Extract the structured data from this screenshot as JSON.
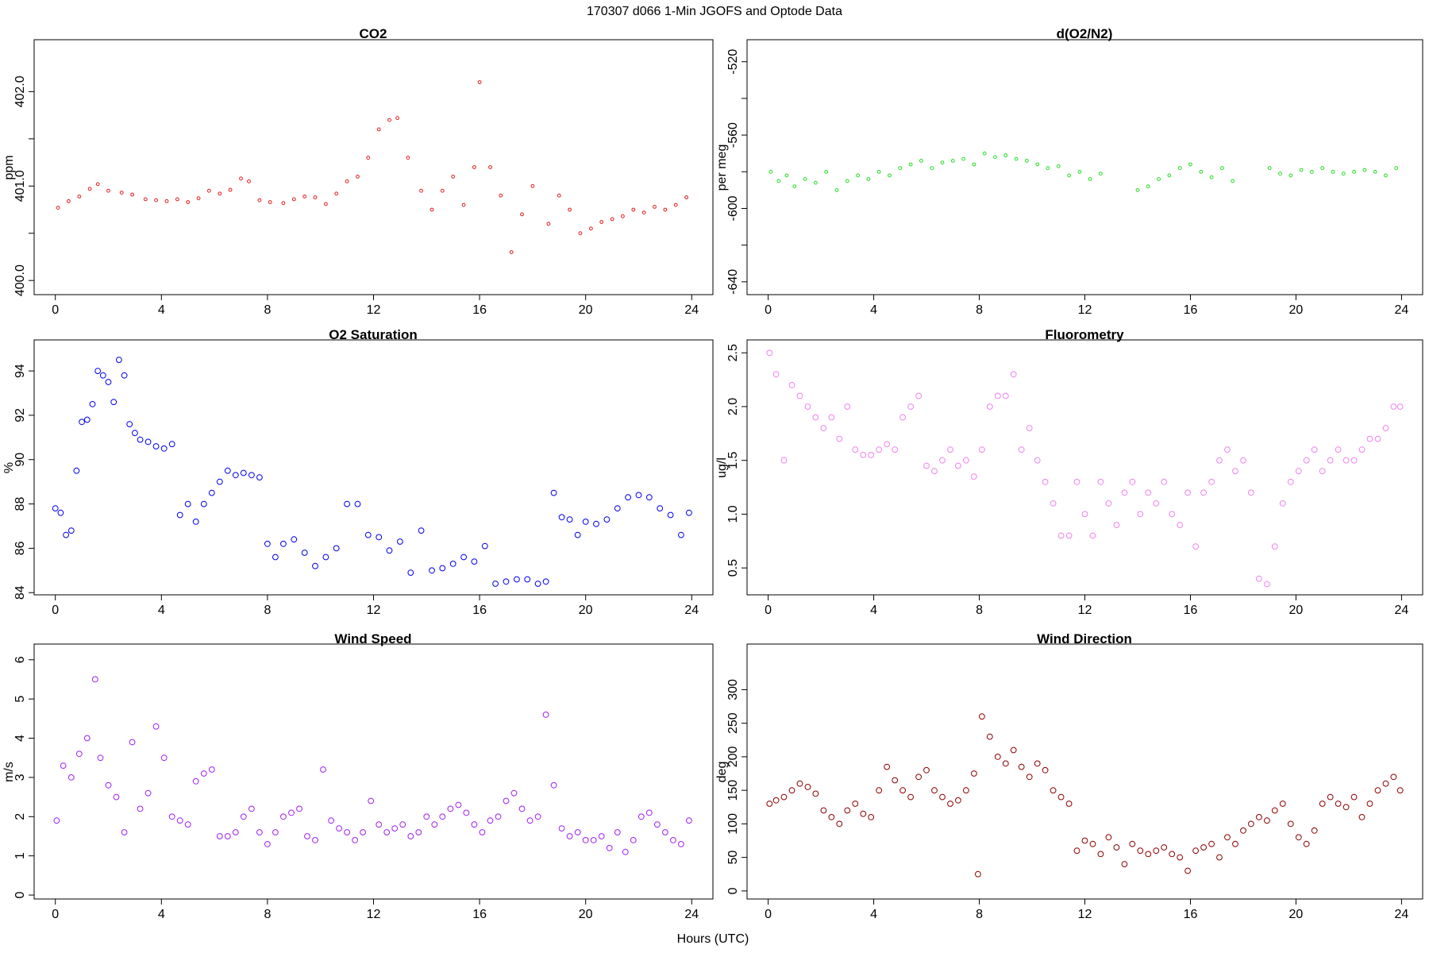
{
  "suptitle": "170307   d066   1-Min  JGOFS and Optode Data",
  "xlabel_common": "Hours (UTC)",
  "chart_data": [
    {
      "type": "scatter",
      "title": "CO2",
      "ylabel": "ppm",
      "color": "#e41a1c",
      "marker": "small-circle",
      "xlim": [
        -0.8,
        24.8
      ],
      "ylim": [
        399.85,
        402.55
      ],
      "xticks": [
        0,
        4,
        8,
        12,
        16,
        20,
        24
      ],
      "yticks": [
        400.0,
        400.5,
        401.0,
        401.5,
        402.0
      ],
      "ytick_labels": [
        "400.0",
        "",
        "401.0",
        "",
        "402.0"
      ],
      "series": [
        {
          "name": "CO2",
          "x": [
            0.1,
            0.5,
            0.9,
            1.3,
            1.6,
            2.0,
            2.5,
            2.9,
            3.4,
            3.8,
            4.2,
            4.6,
            5.0,
            5.4,
            5.8,
            6.2,
            6.6,
            7.0,
            7.3,
            7.7,
            8.1,
            8.6,
            9.0,
            9.4,
            9.8,
            10.2,
            10.6,
            11.0,
            11.4,
            11.8,
            12.2,
            12.6,
            12.9,
            13.3,
            13.8,
            14.2,
            14.6,
            15.0,
            15.4,
            15.8,
            16.0,
            16.4,
            16.8,
            17.2,
            17.6,
            18.0,
            18.6,
            19.0,
            19.4,
            19.8,
            20.2,
            20.6,
            21.0,
            21.4,
            21.8,
            22.2,
            22.6,
            23.0,
            23.4,
            23.8
          ],
          "y": [
            400.77,
            400.84,
            400.89,
            400.97,
            401.02,
            400.95,
            400.93,
            400.91,
            400.86,
            400.85,
            400.84,
            400.86,
            400.83,
            400.87,
            400.95,
            400.92,
            400.96,
            401.08,
            401.05,
            400.85,
            400.83,
            400.82,
            400.86,
            400.89,
            400.88,
            400.81,
            400.92,
            401.05,
            401.1,
            401.3,
            401.6,
            401.7,
            401.72,
            401.3,
            400.95,
            400.75,
            400.95,
            401.1,
            400.8,
            401.2,
            402.1,
            401.2,
            400.9,
            400.3,
            400.7,
            401.0,
            400.6,
            400.9,
            400.75,
            400.5,
            400.55,
            400.62,
            400.65,
            400.68,
            400.75,
            400.72,
            400.78,
            400.75,
            400.8,
            400.88
          ]
        }
      ]
    },
    {
      "type": "scatter",
      "title": "d(O2/N2)",
      "ylabel": "per meg",
      "color": "#22dd22",
      "marker": "small-circle",
      "xlim": [
        -0.8,
        24.8
      ],
      "ylim": [
        -647,
        -508
      ],
      "xticks": [
        0,
        4,
        8,
        12,
        16,
        20,
        24
      ],
      "yticks": [
        -640,
        -620,
        -600,
        -580,
        -560,
        -540,
        -520
      ],
      "ytick_labels": [
        "-640",
        "",
        "-600",
        "",
        "-560",
        "",
        "-520"
      ],
      "series": [
        {
          "name": "d(O2/N2)",
          "x": [
            0.1,
            0.4,
            0.7,
            1.0,
            1.4,
            1.8,
            2.2,
            2.6,
            3.0,
            3.4,
            3.8,
            4.2,
            4.6,
            5.0,
            5.4,
            5.8,
            6.2,
            6.6,
            7.0,
            7.4,
            7.8,
            8.2,
            8.6,
            9.0,
            9.4,
            9.8,
            10.2,
            10.6,
            11.0,
            11.4,
            11.8,
            12.2,
            12.6,
            14.0,
            14.4,
            14.8,
            15.2,
            15.6,
            16.0,
            16.4,
            16.8,
            17.2,
            17.6,
            19.0,
            19.4,
            19.8,
            20.2,
            20.6,
            21.0,
            21.4,
            21.8,
            22.2,
            22.6,
            23.0,
            23.4,
            23.8
          ],
          "y": [
            -580,
            -585,
            -582,
            -588,
            -584,
            -586,
            -580,
            -590,
            -585,
            -582,
            -584,
            -580,
            -582,
            -578,
            -576,
            -574,
            -578,
            -575,
            -574,
            -573,
            -576,
            -570,
            -572,
            -571,
            -573,
            -574,
            -576,
            -578,
            -577,
            -582,
            -580,
            -584,
            -581,
            -590,
            -588,
            -584,
            -582,
            -578,
            -576,
            -580,
            -583,
            -578,
            -585,
            -578,
            -581,
            -582,
            -579,
            -580,
            -578,
            -580,
            -581,
            -580,
            -579,
            -580,
            -582,
            -578
          ]
        }
      ]
    },
    {
      "type": "scatter",
      "title": "O2 Saturation",
      "ylabel": "%",
      "color": "#0000ee",
      "marker": "circle",
      "xlim": [
        -0.8,
        24.8
      ],
      "ylim": [
        83.9,
        95.4
      ],
      "xticks": [
        0,
        4,
        8,
        12,
        16,
        20,
        24
      ],
      "yticks": [
        84,
        86,
        88,
        90,
        92,
        94
      ],
      "ytick_labels": [
        "84",
        "86",
        "88",
        "90",
        "92",
        "94"
      ],
      "series": [
        {
          "name": "O2 Saturation",
          "x": [
            0.0,
            0.2,
            0.4,
            0.6,
            0.8,
            1.0,
            1.2,
            1.4,
            1.6,
            1.8,
            2.0,
            2.2,
            2.4,
            2.6,
            2.8,
            3.0,
            3.2,
            3.5,
            3.8,
            4.1,
            4.4,
            4.7,
            5.0,
            5.3,
            5.6,
            5.9,
            6.2,
            6.5,
            6.8,
            7.1,
            7.4,
            7.7,
            8.0,
            8.3,
            8.6,
            9.0,
            9.4,
            9.8,
            10.2,
            10.6,
            11.0,
            11.4,
            11.8,
            12.2,
            12.6,
            13.0,
            13.4,
            13.8,
            14.2,
            14.6,
            15.0,
            15.4,
            15.8,
            16.2,
            16.6,
            17.0,
            17.4,
            17.8,
            18.2,
            18.5,
            18.8,
            19.1,
            19.4,
            19.7,
            20.0,
            20.4,
            20.8,
            21.2,
            21.6,
            22.0,
            22.4,
            22.8,
            23.2,
            23.6,
            23.9
          ],
          "y": [
            87.8,
            87.6,
            86.6,
            86.8,
            89.5,
            91.7,
            91.8,
            92.5,
            94.0,
            93.8,
            93.5,
            92.6,
            94.5,
            93.8,
            91.6,
            91.2,
            90.9,
            90.8,
            90.6,
            90.5,
            90.7,
            87.5,
            88.0,
            87.2,
            88.0,
            88.5,
            89.0,
            89.5,
            89.3,
            89.4,
            89.3,
            89.2,
            86.2,
            85.6,
            86.2,
            86.4,
            85.8,
            85.2,
            85.6,
            86.0,
            88.0,
            88.0,
            86.6,
            86.5,
            85.9,
            86.3,
            84.9,
            86.8,
            85.0,
            85.1,
            85.3,
            85.6,
            85.4,
            86.1,
            84.4,
            84.5,
            84.6,
            84.6,
            84.4,
            84.5,
            88.5,
            87.4,
            87.3,
            86.6,
            87.2,
            87.1,
            87.3,
            87.8,
            88.3,
            88.4,
            88.3,
            87.8,
            87.5,
            86.6,
            87.6
          ]
        }
      ]
    },
    {
      "type": "scatter",
      "title": "Fluorometry",
      "ylabel": "ug/l",
      "color": "#ee82ee",
      "marker": "circle",
      "xlim": [
        -0.8,
        24.8
      ],
      "ylim": [
        0.25,
        2.62
      ],
      "xticks": [
        0,
        4,
        8,
        12,
        16,
        20,
        24
      ],
      "yticks": [
        0.5,
        1.0,
        1.5,
        2.0,
        2.5
      ],
      "ytick_labels": [
        "0.5",
        "1.0",
        "1.5",
        "2.0",
        "2.5"
      ],
      "series": [
        {
          "name": "Fluorometry",
          "x": [
            0.05,
            0.3,
            0.6,
            0.9,
            1.2,
            1.5,
            1.8,
            2.1,
            2.4,
            2.7,
            3.0,
            3.3,
            3.6,
            3.9,
            4.2,
            4.5,
            4.8,
            5.1,
            5.4,
            5.7,
            6.0,
            6.3,
            6.6,
            6.9,
            7.2,
            7.5,
            7.8,
            8.1,
            8.4,
            8.7,
            9.0,
            9.3,
            9.6,
            9.9,
            10.2,
            10.5,
            10.8,
            11.1,
            11.4,
            11.7,
            12.0,
            12.3,
            12.6,
            12.9,
            13.2,
            13.5,
            13.8,
            14.1,
            14.4,
            14.7,
            15.0,
            15.3,
            15.6,
            15.9,
            16.2,
            16.5,
            16.8,
            17.1,
            17.4,
            17.7,
            18.0,
            18.3,
            18.6,
            18.9,
            19.2,
            19.5,
            19.8,
            20.1,
            20.4,
            20.7,
            21.0,
            21.3,
            21.6,
            21.9,
            22.2,
            22.5,
            22.8,
            23.1,
            23.4,
            23.7,
            23.95
          ],
          "y": [
            2.5,
            2.3,
            1.5,
            2.2,
            2.1,
            2.0,
            1.9,
            1.8,
            1.9,
            1.7,
            2.0,
            1.6,
            1.55,
            1.55,
            1.6,
            1.65,
            1.6,
            1.9,
            2.0,
            2.1,
            1.45,
            1.4,
            1.5,
            1.6,
            1.45,
            1.5,
            1.35,
            1.6,
            2.0,
            2.1,
            2.1,
            2.3,
            1.6,
            1.8,
            1.5,
            1.3,
            1.1,
            0.8,
            0.8,
            1.3,
            1.0,
            0.8,
            1.3,
            1.1,
            0.9,
            1.2,
            1.3,
            1.0,
            1.2,
            1.1,
            1.3,
            1.0,
            0.9,
            1.2,
            0.7,
            1.2,
            1.3,
            1.5,
            1.6,
            1.4,
            1.5,
            1.2,
            0.4,
            0.35,
            0.7,
            1.1,
            1.3,
            1.4,
            1.5,
            1.6,
            1.4,
            1.5,
            1.6,
            1.5,
            1.5,
            1.6,
            1.7,
            1.7,
            1.8,
            2.0,
            2.0
          ]
        }
      ]
    },
    {
      "type": "scatter",
      "title": "Wind Speed",
      "ylabel": "m/s",
      "color": "#a020f0",
      "marker": "circle",
      "xlim": [
        -0.8,
        24.8
      ],
      "ylim": [
        -0.1,
        6.4
      ],
      "xticks": [
        0,
        4,
        8,
        12,
        16,
        20,
        24
      ],
      "yticks": [
        0,
        1,
        2,
        3,
        4,
        5,
        6
      ],
      "ytick_labels": [
        "0",
        "1",
        "2",
        "3",
        "4",
        "5",
        "6"
      ],
      "series": [
        {
          "name": "Wind Speed",
          "x": [
            0.05,
            0.3,
            0.6,
            0.9,
            1.2,
            1.5,
            1.7,
            2.0,
            2.3,
            2.6,
            2.9,
            3.2,
            3.5,
            3.8,
            4.1,
            4.4,
            4.7,
            5.0,
            5.3,
            5.6,
            5.9,
            6.2,
            6.5,
            6.8,
            7.1,
            7.4,
            7.7,
            8.0,
            8.3,
            8.6,
            8.9,
            9.2,
            9.5,
            9.8,
            10.1,
            10.4,
            10.7,
            11.0,
            11.3,
            11.6,
            11.9,
            12.2,
            12.5,
            12.8,
            13.1,
            13.4,
            13.7,
            14.0,
            14.3,
            14.6,
            14.9,
            15.2,
            15.5,
            15.8,
            16.1,
            16.4,
            16.7,
            17.0,
            17.3,
            17.6,
            17.9,
            18.2,
            18.5,
            18.8,
            19.1,
            19.4,
            19.7,
            20.0,
            20.3,
            20.6,
            20.9,
            21.2,
            21.5,
            21.8,
            22.1,
            22.4,
            22.7,
            23.0,
            23.3,
            23.6,
            23.9
          ],
          "y": [
            1.9,
            3.3,
            3.0,
            3.6,
            4.0,
            5.5,
            3.5,
            2.8,
            2.5,
            1.6,
            3.9,
            2.2,
            2.6,
            4.3,
            3.5,
            2.0,
            1.9,
            1.8,
            2.9,
            3.1,
            3.2,
            1.5,
            1.5,
            1.6,
            2.0,
            2.2,
            1.6,
            1.3,
            1.6,
            2.0,
            2.1,
            2.2,
            1.5,
            1.4,
            3.2,
            1.9,
            1.7,
            1.6,
            1.4,
            1.6,
            2.4,
            1.8,
            1.6,
            1.7,
            1.8,
            1.5,
            1.6,
            2.0,
            1.8,
            2.0,
            2.2,
            2.3,
            2.1,
            1.8,
            1.6,
            1.9,
            2.0,
            2.4,
            2.6,
            2.2,
            1.9,
            2.0,
            4.6,
            2.8,
            1.7,
            1.5,
            1.6,
            1.4,
            1.4,
            1.5,
            1.2,
            1.6,
            1.1,
            1.4,
            2.0,
            2.1,
            1.8,
            1.6,
            1.4,
            1.3,
            1.9
          ]
        }
      ]
    },
    {
      "type": "scatter",
      "title": "Wind Direction",
      "ylabel": "deg",
      "color": "#8b0000",
      "marker": "circle",
      "xlim": [
        -0.8,
        24.8
      ],
      "ylim": [
        -12,
        368
      ],
      "xticks": [
        0,
        4,
        8,
        12,
        16,
        20,
        24
      ],
      "yticks": [
        0,
        50,
        100,
        150,
        200,
        250,
        300
      ],
      "ytick_labels": [
        "0",
        "50",
        "100",
        "150",
        "200",
        "250",
        "300"
      ],
      "series": [
        {
          "name": "Wind Direction",
          "x": [
            0.05,
            0.3,
            0.6,
            0.9,
            1.2,
            1.5,
            1.8,
            2.1,
            2.4,
            2.7,
            3.0,
            3.3,
            3.6,
            3.9,
            4.2,
            4.5,
            4.8,
            5.1,
            5.4,
            5.7,
            6.0,
            6.3,
            6.6,
            6.9,
            7.2,
            7.5,
            7.8,
            7.95,
            8.1,
            8.4,
            8.7,
            9.0,
            9.3,
            9.6,
            9.9,
            10.2,
            10.5,
            10.8,
            11.1,
            11.4,
            11.7,
            12.0,
            12.3,
            12.6,
            12.9,
            13.2,
            13.5,
            13.8,
            14.1,
            14.4,
            14.7,
            15.0,
            15.3,
            15.6,
            15.9,
            16.2,
            16.5,
            16.8,
            17.1,
            17.4,
            17.7,
            18.0,
            18.3,
            18.6,
            18.9,
            19.2,
            19.5,
            19.8,
            20.1,
            20.4,
            20.7,
            21.0,
            21.3,
            21.6,
            21.9,
            22.2,
            22.5,
            22.8,
            23.1,
            23.4,
            23.7,
            23.95
          ],
          "y": [
            130,
            135,
            140,
            150,
            160,
            155,
            145,
            120,
            110,
            100,
            120,
            130,
            115,
            110,
            150,
            185,
            165,
            150,
            140,
            170,
            180,
            150,
            140,
            130,
            135,
            150,
            175,
            25,
            260,
            230,
            200,
            190,
            210,
            185,
            170,
            190,
            180,
            150,
            140,
            130,
            60,
            75,
            70,
            55,
            80,
            65,
            40,
            70,
            60,
            55,
            60,
            65,
            55,
            50,
            30,
            60,
            65,
            70,
            50,
            80,
            70,
            90,
            100,
            110,
            105,
            120,
            130,
            100,
            80,
            70,
            90,
            130,
            140,
            130,
            125,
            140,
            110,
            130,
            150,
            160,
            170,
            150
          ]
        }
      ]
    }
  ]
}
